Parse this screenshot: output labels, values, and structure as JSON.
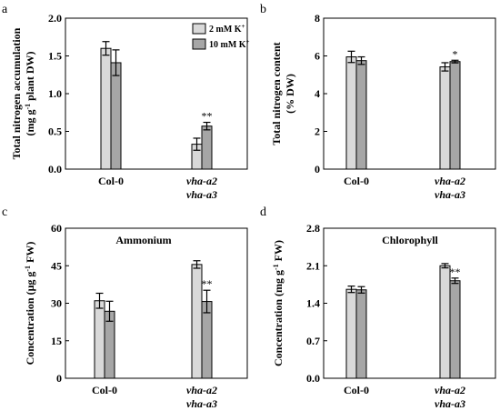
{
  "chart_data": [
    {
      "panel_label": "a",
      "type": "bar",
      "title": "",
      "ylabel": "Total nitrogen accumulation",
      "ylabel_line2_parts": [
        "(mg g",
        "-1",
        " plant DW)"
      ],
      "ylim": [
        0,
        2.0
      ],
      "yticks": [
        "0.0",
        "0.5",
        "1.0",
        "1.5",
        "2.0"
      ],
      "ytick_values": [
        0,
        0.5,
        1.0,
        1.5,
        2.0
      ],
      "categories": [
        [
          "Col-0"
        ],
        [
          "vha-a2",
          "vha-a3"
        ]
      ],
      "series": [
        {
          "name": "2 mM K+",
          "color": "#d9d9d9",
          "values": [
            1.6,
            0.33
          ],
          "errors": [
            0.09,
            0.08
          ]
        },
        {
          "name": "10 mM K+",
          "color": "#a6a6a6",
          "values": [
            1.41,
            0.57
          ],
          "errors": [
            0.17,
            0.05
          ]
        }
      ],
      "annotations": [
        {
          "category": 1,
          "series": 1,
          "text": "**"
        }
      ],
      "legend": "top-right",
      "grid": false
    },
    {
      "panel_label": "b",
      "type": "bar",
      "title": "",
      "ylabel": "Total nitrogen content",
      "ylabel_line2_parts": [
        "(% DW)"
      ],
      "ylim": [
        0,
        8
      ],
      "yticks": [
        "0",
        "2",
        "4",
        "6",
        "8"
      ],
      "ytick_values": [
        0,
        2,
        4,
        6,
        8
      ],
      "categories": [
        [
          "Col-0"
        ],
        [
          "vha-a2",
          "vha-a3"
        ]
      ],
      "series": [
        {
          "name": "2 mM K+",
          "color": "#d9d9d9",
          "values": [
            5.95,
            5.42
          ],
          "errors": [
            0.3,
            0.22
          ]
        },
        {
          "name": "10 mM K+",
          "color": "#a6a6a6",
          "values": [
            5.75,
            5.7
          ],
          "errors": [
            0.2,
            0.07
          ]
        }
      ],
      "annotations": [
        {
          "category": 1,
          "series": 1,
          "text": "*"
        }
      ],
      "grid": false
    },
    {
      "panel_label": "c",
      "type": "bar",
      "title": "Ammonium",
      "ylabel": "Concentration (μg g",
      "ylabel_sup": "-1",
      "ylabel_tail": " FW)",
      "ylim": [
        0,
        60
      ],
      "yticks": [
        "0",
        "15",
        "30",
        "45",
        "60"
      ],
      "ytick_values": [
        0,
        15,
        30,
        45,
        60
      ],
      "categories": [
        [
          "Col-0"
        ],
        [
          "vha-a2",
          "vha-a3"
        ]
      ],
      "series": [
        {
          "name": "2 mM K+",
          "color": "#d9d9d9",
          "values": [
            31.0,
            45.5
          ],
          "errors": [
            3.0,
            1.5
          ]
        },
        {
          "name": "10 mM K+",
          "color": "#a6a6a6",
          "values": [
            26.8,
            30.7
          ],
          "errors": [
            4.0,
            4.5
          ]
        }
      ],
      "annotations": [
        {
          "category": 1,
          "series": 1,
          "text": "**"
        }
      ],
      "grid": false
    },
    {
      "panel_label": "d",
      "type": "bar",
      "title": "Chlorophyll",
      "ylabel": "Concentration (mg g",
      "ylabel_sup": "-1",
      "ylabel_tail": " FW)",
      "ylim": [
        0,
        2.8
      ],
      "yticks": [
        "0.0",
        "0.7",
        "1.4",
        "2.1",
        "2.8"
      ],
      "ytick_values": [
        0,
        0.7,
        1.4,
        2.1,
        2.8
      ],
      "categories": [
        [
          "Col-0"
        ],
        [
          "vha-a2",
          "vha-a3"
        ]
      ],
      "series": [
        {
          "name": "2 mM K+",
          "color": "#d9d9d9",
          "values": [
            1.66,
            2.1
          ],
          "errors": [
            0.06,
            0.04
          ]
        },
        {
          "name": "10 mM K+",
          "color": "#a6a6a6",
          "values": [
            1.65,
            1.82
          ],
          "errors": [
            0.06,
            0.05
          ]
        }
      ],
      "annotations": [
        {
          "category": 1,
          "series": 1,
          "text": "**"
        }
      ],
      "grid": false
    }
  ]
}
